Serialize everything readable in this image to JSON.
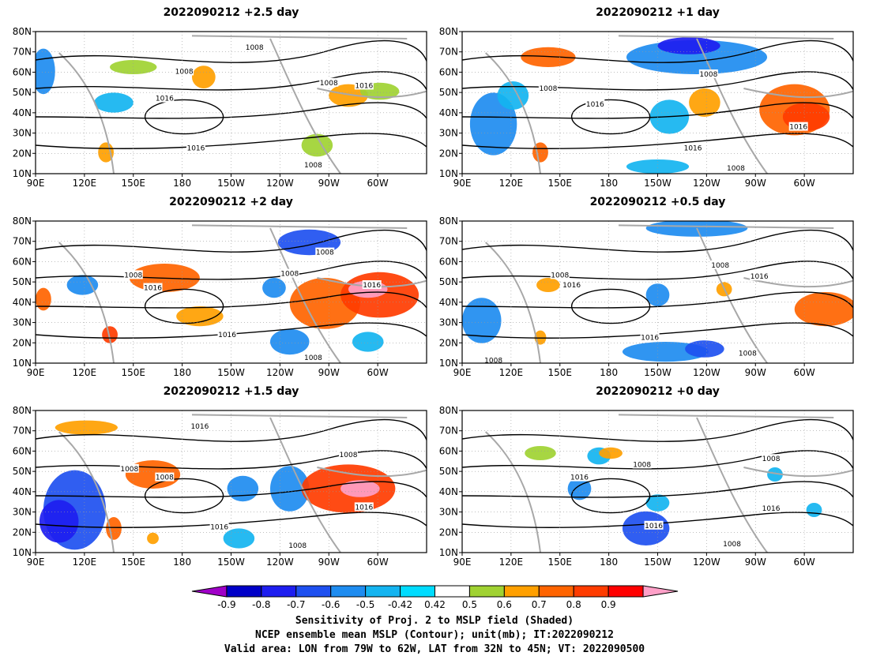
{
  "panels": [
    {
      "id": "p25",
      "title": "2022090212 +2.5 day",
      "contour_labels": [
        "1008",
        "1008",
        "1016",
        "1008",
        "1016",
        "1016",
        "1008"
      ]
    },
    {
      "id": "p1",
      "title": "2022090212 +1 day",
      "contour_labels": [
        "1008",
        "1008",
        "1016",
        "1016",
        "1016",
        "1008"
      ]
    },
    {
      "id": "p2",
      "title": "2022090212 +2 day",
      "contour_labels": [
        "1008",
        "1016",
        "1008",
        "1008",
        "1016",
        "1016",
        "1008"
      ]
    },
    {
      "id": "p05",
      "title": "2022090212 +0.5 day",
      "contour_labels": [
        "1008",
        "1016",
        "1008",
        "1016",
        "1016",
        "1008",
        "1008"
      ]
    },
    {
      "id": "p15",
      "title": "2022090212 +1.5 day",
      "contour_labels": [
        "1008",
        "1008",
        "1016",
        "1008",
        "1016",
        "1016",
        "1008"
      ]
    },
    {
      "id": "p0",
      "title": "2022090212 +0 day",
      "contour_labels": [
        "1008",
        "1008",
        "1016",
        "1016",
        "1016",
        "1008"
      ]
    }
  ],
  "axes": {
    "x_ticks": [
      "90E",
      "120E",
      "150E",
      "180",
      "150W",
      "120W",
      "90W",
      "60W"
    ],
    "y_ticks": [
      "80N",
      "70N",
      "60N",
      "50N",
      "40N",
      "30N",
      "20N",
      "10N"
    ]
  },
  "colorbar": {
    "tick_labels": [
      "-0.9",
      "-0.8",
      "-0.7",
      "-0.6",
      "-0.5",
      "-0.42",
      "0.42",
      "0.5",
      "0.6",
      "0.7",
      "0.8",
      "0.9"
    ],
    "colors": [
      "#a000c8",
      "#0000c8",
      "#1e1ef0",
      "#1e50f0",
      "#1e8cf0",
      "#14b4f0",
      "#00dcff",
      "#ffffff",
      "#a0d232",
      "#ffa000",
      "#ff6400",
      "#ff3c00",
      "#ff0000",
      "#ffa0c8"
    ]
  },
  "caption": {
    "line1": "Sensitivity of Proj. 2 to MSLP field (Shaded)",
    "line2": "NCEP ensemble mean MSLP (Contour); unit(mb); IT:2022090212",
    "line3": "Valid area: LON from 79W to 62W, LAT from 32N to 45N; VT: 2022090500"
  }
}
